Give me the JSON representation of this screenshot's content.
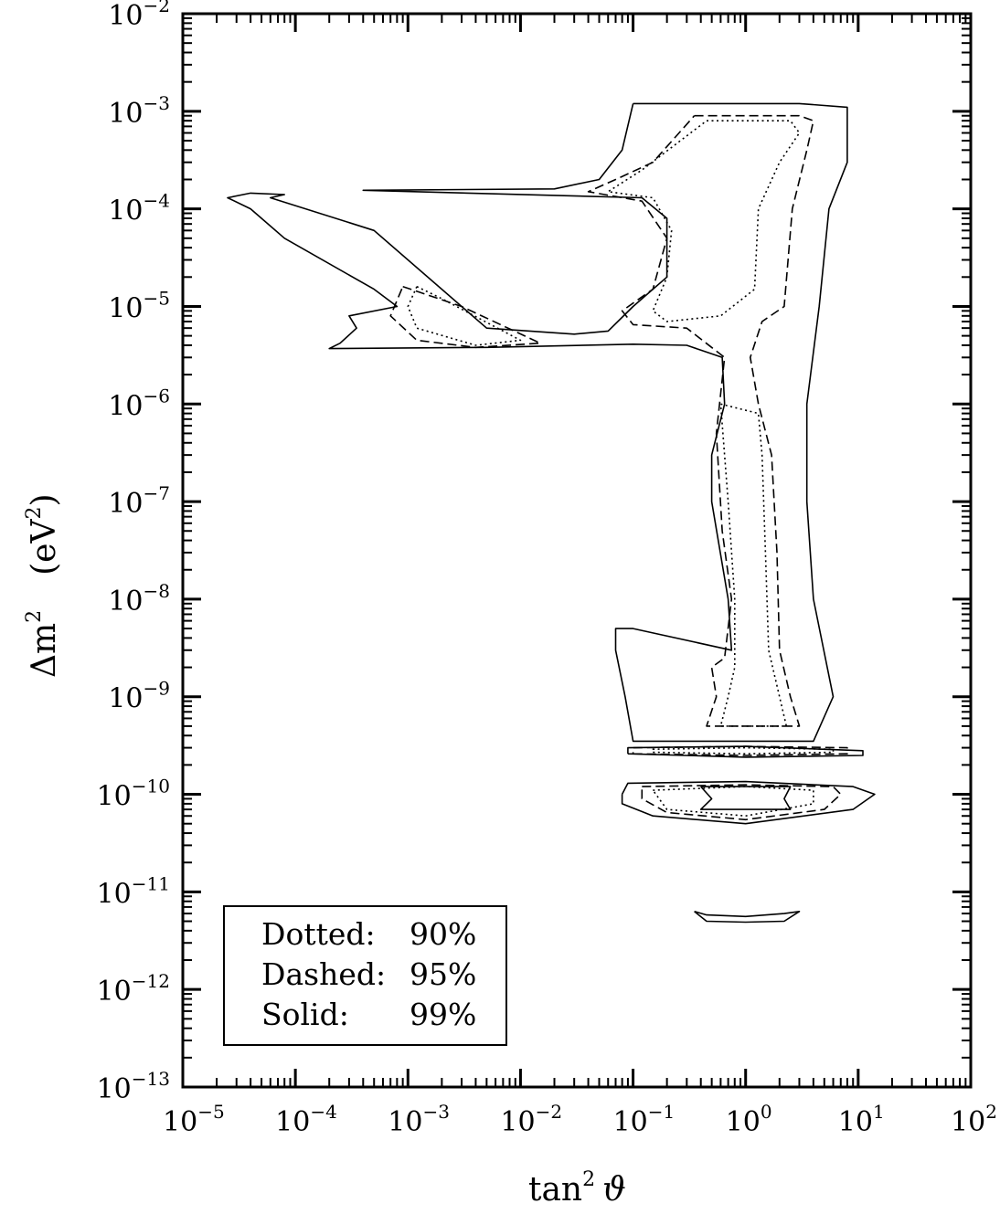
{
  "chart_data": {
    "type": "contour",
    "x_axis": {
      "label": "tan² ϑ",
      "label_main": "tan",
      "label_sup": "2",
      "label_var": "ϑ",
      "scale": "log",
      "range": [
        1e-05,
        100
      ],
      "tick_labels": [
        {
          "value": 1e-05,
          "base": "10",
          "exp": "−5"
        },
        {
          "value": 0.0001,
          "base": "10",
          "exp": "−4"
        },
        {
          "value": 0.001,
          "base": "10",
          "exp": "−3"
        },
        {
          "value": 0.01,
          "base": "10",
          "exp": "−2"
        },
        {
          "value": 0.1,
          "base": "10",
          "exp": "−1"
        },
        {
          "value": 1,
          "base": "10",
          "exp": "0"
        },
        {
          "value": 10,
          "base": "10",
          "exp": "1"
        },
        {
          "value": 100,
          "base": "10",
          "exp": "2"
        }
      ]
    },
    "y_axis": {
      "label": "Δm²  (eV²)",
      "label_main": "Δm",
      "label_sup": "2",
      "label_unit": "(eV",
      "label_unit_sup": "2",
      "label_unit_close": ")",
      "scale": "log",
      "range": [
        1e-13,
        0.01
      ],
      "tick_labels": [
        {
          "value": 0.01,
          "base": "10",
          "exp": "−2"
        },
        {
          "value": 0.001,
          "base": "10",
          "exp": "−3"
        },
        {
          "value": 0.0001,
          "base": "10",
          "exp": "−4"
        },
        {
          "value": 1e-05,
          "base": "10",
          "exp": "−5"
        },
        {
          "value": 1e-06,
          "base": "10",
          "exp": "−6"
        },
        {
          "value": 1e-07,
          "base": "10",
          "exp": "−7"
        },
        {
          "value": 1e-08,
          "base": "10",
          "exp": "−8"
        },
        {
          "value": 1e-09,
          "base": "10",
          "exp": "−9"
        },
        {
          "value": 1e-10,
          "base": "10",
          "exp": "−10"
        },
        {
          "value": 1e-11,
          "base": "10",
          "exp": "−11"
        },
        {
          "value": 1e-12,
          "base": "10",
          "exp": "−12"
        },
        {
          "value": 1e-13,
          "base": "10",
          "exp": "−13"
        }
      ]
    },
    "legend": {
      "position": "bottom-left",
      "entries": [
        {
          "style": "Dotted:",
          "level": "90%"
        },
        {
          "style": "Dashed:",
          "level": "95%"
        },
        {
          "style": "Solid:",
          "level": "99%"
        }
      ]
    },
    "series": [
      {
        "name": "99%",
        "dash": "solid",
        "contours": [
          [
            [
              0.1,
              0.0012
            ],
            [
              3,
              0.0012
            ],
            [
              8,
              0.0011
            ],
            [
              8,
              0.0003
            ],
            [
              5.5,
              0.0001
            ],
            [
              4.5,
              1e-05
            ],
            [
              3.5,
              1e-06
            ],
            [
              3.5,
              1e-07
            ],
            [
              4,
              1e-08
            ],
            [
              6,
              1e-09
            ],
            [
              4,
              3.5e-10
            ],
            [
              0.1,
              3.5e-10
            ],
            [
              0.085,
              1e-09
            ],
            [
              0.07,
              3e-09
            ],
            [
              0.07,
              5e-09
            ],
            [
              0.1,
              5e-09
            ],
            [
              0.75,
              3e-09
            ],
            [
              0.7,
              1e-08
            ],
            [
              0.5,
              1e-07
            ],
            [
              0.5,
              3e-07
            ],
            [
              0.65,
              1e-06
            ],
            [
              0.62,
              3e-06
            ],
            [
              0.3,
              4e-06
            ],
            [
              0.1,
              4.1e-06
            ],
            [
              0.005,
              3.8e-06
            ],
            [
              0.0002,
              3.7e-06
            ],
            [
              0.00025,
              4.2e-06
            ],
            [
              0.00035,
              6e-06
            ],
            [
              0.0003,
              8e-06
            ],
            [
              0.0008,
              1e-05
            ],
            [
              0.0005,
              1.5e-05
            ],
            [
              8e-05,
              5e-05
            ],
            [
              4e-05,
              0.0001
            ],
            [
              2.5e-05,
              0.00013
            ],
            [
              4e-05,
              0.000145
            ],
            [
              8e-05,
              0.00014
            ],
            [
              6e-05,
              0.00013
            ],
            [
              0.0005,
              6e-05
            ],
            [
              0.005,
              6e-06
            ],
            [
              0.03,
              5.2e-06
            ],
            [
              0.06,
              5.6e-06
            ],
            [
              0.1,
              1e-05
            ],
            [
              0.2,
              2e-05
            ],
            [
              0.2,
              8e-05
            ],
            [
              0.12,
              0.00013
            ],
            [
              0.0004,
              0.000155
            ],
            [
              0.02,
              0.00016
            ],
            [
              0.05,
              0.0002
            ],
            [
              0.08,
              0.0004
            ],
            [
              0.1,
              0.0012
            ]
          ],
          [
            [
              0.09,
              2.6e-10
            ],
            [
              1,
              2.4e-10
            ],
            [
              11,
              2.5e-10
            ],
            [
              11,
              2.8e-10
            ],
            [
              1,
              3.1e-10
            ],
            [
              0.09,
              3e-10
            ],
            [
              0.09,
              2.6e-10
            ]
          ],
          [
            [
              0.08,
              1e-10
            ],
            [
              0.09,
              1.3e-10
            ],
            [
              1,
              1.35e-10
            ],
            [
              9,
              1.2e-10
            ],
            [
              14,
              1e-10
            ],
            [
              9,
              7e-11
            ],
            [
              1,
              5e-11
            ],
            [
              0.15,
              6e-11
            ],
            [
              0.08,
              8e-11
            ],
            [
              0.08,
              1e-10
            ]
          ],
          [
            [
              0.4,
              1.2e-10
            ],
            [
              2.5,
              1.2e-10
            ],
            [
              2.2,
              9e-11
            ],
            [
              2.5,
              7e-11
            ],
            [
              0.4,
              7e-11
            ],
            [
              0.5,
              9e-11
            ],
            [
              0.4,
              1.2e-10
            ]
          ],
          [
            [
              0.35,
              6.3e-12
            ],
            [
              0.45,
              5.8e-12
            ],
            [
              1,
              5.6e-12
            ],
            [
              2.2,
              6e-12
            ],
            [
              3,
              6.3e-12
            ],
            [
              2.2,
              5e-12
            ],
            [
              1,
              4.9e-12
            ],
            [
              0.45,
              5e-12
            ],
            [
              0.35,
              6.3e-12
            ]
          ]
        ]
      },
      {
        "name": "95%",
        "dash": "dashed",
        "contours": [
          [
            [
              0.35,
              0.0009
            ],
            [
              3,
              0.0009
            ],
            [
              4,
              0.0008
            ],
            [
              3.5,
              0.0004
            ],
            [
              2.6,
              0.0001
            ],
            [
              2.2,
              1e-05
            ],
            [
              1.4,
              7e-06
            ],
            [
              1.1,
              3e-06
            ],
            [
              1.3,
              1e-06
            ],
            [
              1.7,
              3e-07
            ],
            [
              1.9,
              3e-08
            ],
            [
              2,
              3e-09
            ],
            [
              2.5,
              1e-09
            ],
            [
              3,
              5e-10
            ],
            [
              0.45,
              5e-10
            ],
            [
              0.55,
              1e-09
            ],
            [
              0.5,
              2e-09
            ],
            [
              0.65,
              2.5e-09
            ],
            [
              0.75,
              1e-08
            ],
            [
              0.62,
              5e-08
            ],
            [
              0.55,
              5e-07
            ],
            [
              0.65,
              3e-06
            ],
            [
              0.3,
              6e-06
            ],
            [
              0.1,
              6.5e-06
            ],
            [
              0.08,
              9e-06
            ],
            [
              0.15,
              1.5e-05
            ],
            [
              0.2,
              5e-05
            ],
            [
              0.12,
              0.00012
            ],
            [
              0.04,
              0.00015
            ],
            [
              0.07,
              0.0002
            ],
            [
              0.15,
              0.0003
            ],
            [
              0.35,
              0.0009
            ]
          ],
          [
            [
              0.0009,
              1.6e-05
            ],
            [
              0.003,
              1e-05
            ],
            [
              0.015,
              4.2e-06
            ],
            [
              0.004,
              3.8e-06
            ],
            [
              0.0012,
              4.5e-06
            ],
            [
              0.0007,
              8e-06
            ],
            [
              0.0009,
              1.6e-05
            ]
          ],
          [
            [
              0.1,
              2.6e-10
            ],
            [
              1,
              2.5e-10
            ],
            [
              8,
              2.6e-10
            ],
            [
              8,
              3e-10
            ],
            [
              1,
              3.1e-10
            ],
            [
              0.1,
              3e-10
            ],
            [
              0.1,
              2.6e-10
            ]
          ],
          [
            [
              0.12,
              1.2e-10
            ],
            [
              1,
              1.25e-10
            ],
            [
              6,
              1.2e-10
            ],
            [
              7,
              1e-10
            ],
            [
              5,
              7e-11
            ],
            [
              1,
              5.5e-11
            ],
            [
              0.2,
              6.5e-11
            ],
            [
              0.12,
              9e-11
            ],
            [
              0.12,
              1.2e-10
            ]
          ]
        ]
      },
      {
        "name": "90%",
        "dash": "dotted",
        "contours": [
          [
            [
              0.45,
              0.0008
            ],
            [
              2.5,
              0.0008
            ],
            [
              3,
              0.0006
            ],
            [
              2,
              0.0003
            ],
            [
              1.3,
              0.0001
            ],
            [
              1.2,
              1.5e-05
            ],
            [
              0.6,
              8e-06
            ],
            [
              0.2,
              7e-06
            ],
            [
              0.15,
              9e-06
            ],
            [
              0.2,
              2e-05
            ],
            [
              0.22,
              6e-05
            ],
            [
              0.15,
              0.00013
            ],
            [
              0.06,
              0.00015
            ],
            [
              0.12,
              0.00025
            ],
            [
              0.45,
              0.0008
            ]
          ],
          [
            [
              0.0012,
              1.6e-05
            ],
            [
              0.002,
              1.2e-05
            ],
            [
              0.01,
              4.5e-06
            ],
            [
              0.004,
              4e-06
            ],
            [
              0.0012,
              6e-06
            ],
            [
              0.001,
              1e-05
            ],
            [
              0.0012,
              1.6e-05
            ]
          ],
          [
            [
              0.6,
              1e-06
            ],
            [
              1.3,
              8e-07
            ],
            [
              1.4,
              3e-07
            ],
            [
              1.5,
              3e-08
            ],
            [
              1.6,
              3e-09
            ],
            [
              2,
              1e-09
            ],
            [
              2.3,
              5e-10
            ],
            [
              0.6,
              5e-10
            ],
            [
              0.7,
              1e-09
            ],
            [
              0.8,
              2e-09
            ],
            [
              0.8,
              1e-08
            ],
            [
              0.7,
              1e-07
            ],
            [
              0.6,
              1e-06
            ]
          ],
          [
            [
              0.15,
              2.7e-10
            ],
            [
              1,
              2.6e-10
            ],
            [
              6,
              2.7e-10
            ],
            [
              6,
              2.9e-10
            ],
            [
              1,
              3e-10
            ],
            [
              0.15,
              2.9e-10
            ],
            [
              0.15,
              2.7e-10
            ]
          ],
          [
            [
              0.15,
              1.1e-10
            ],
            [
              1,
              1.2e-10
            ],
            [
              4,
              1.1e-10
            ],
            [
              4,
              8e-11
            ],
            [
              1,
              6e-11
            ],
            [
              0.2,
              7e-11
            ],
            [
              0.15,
              1.1e-10
            ]
          ]
        ]
      }
    ]
  }
}
